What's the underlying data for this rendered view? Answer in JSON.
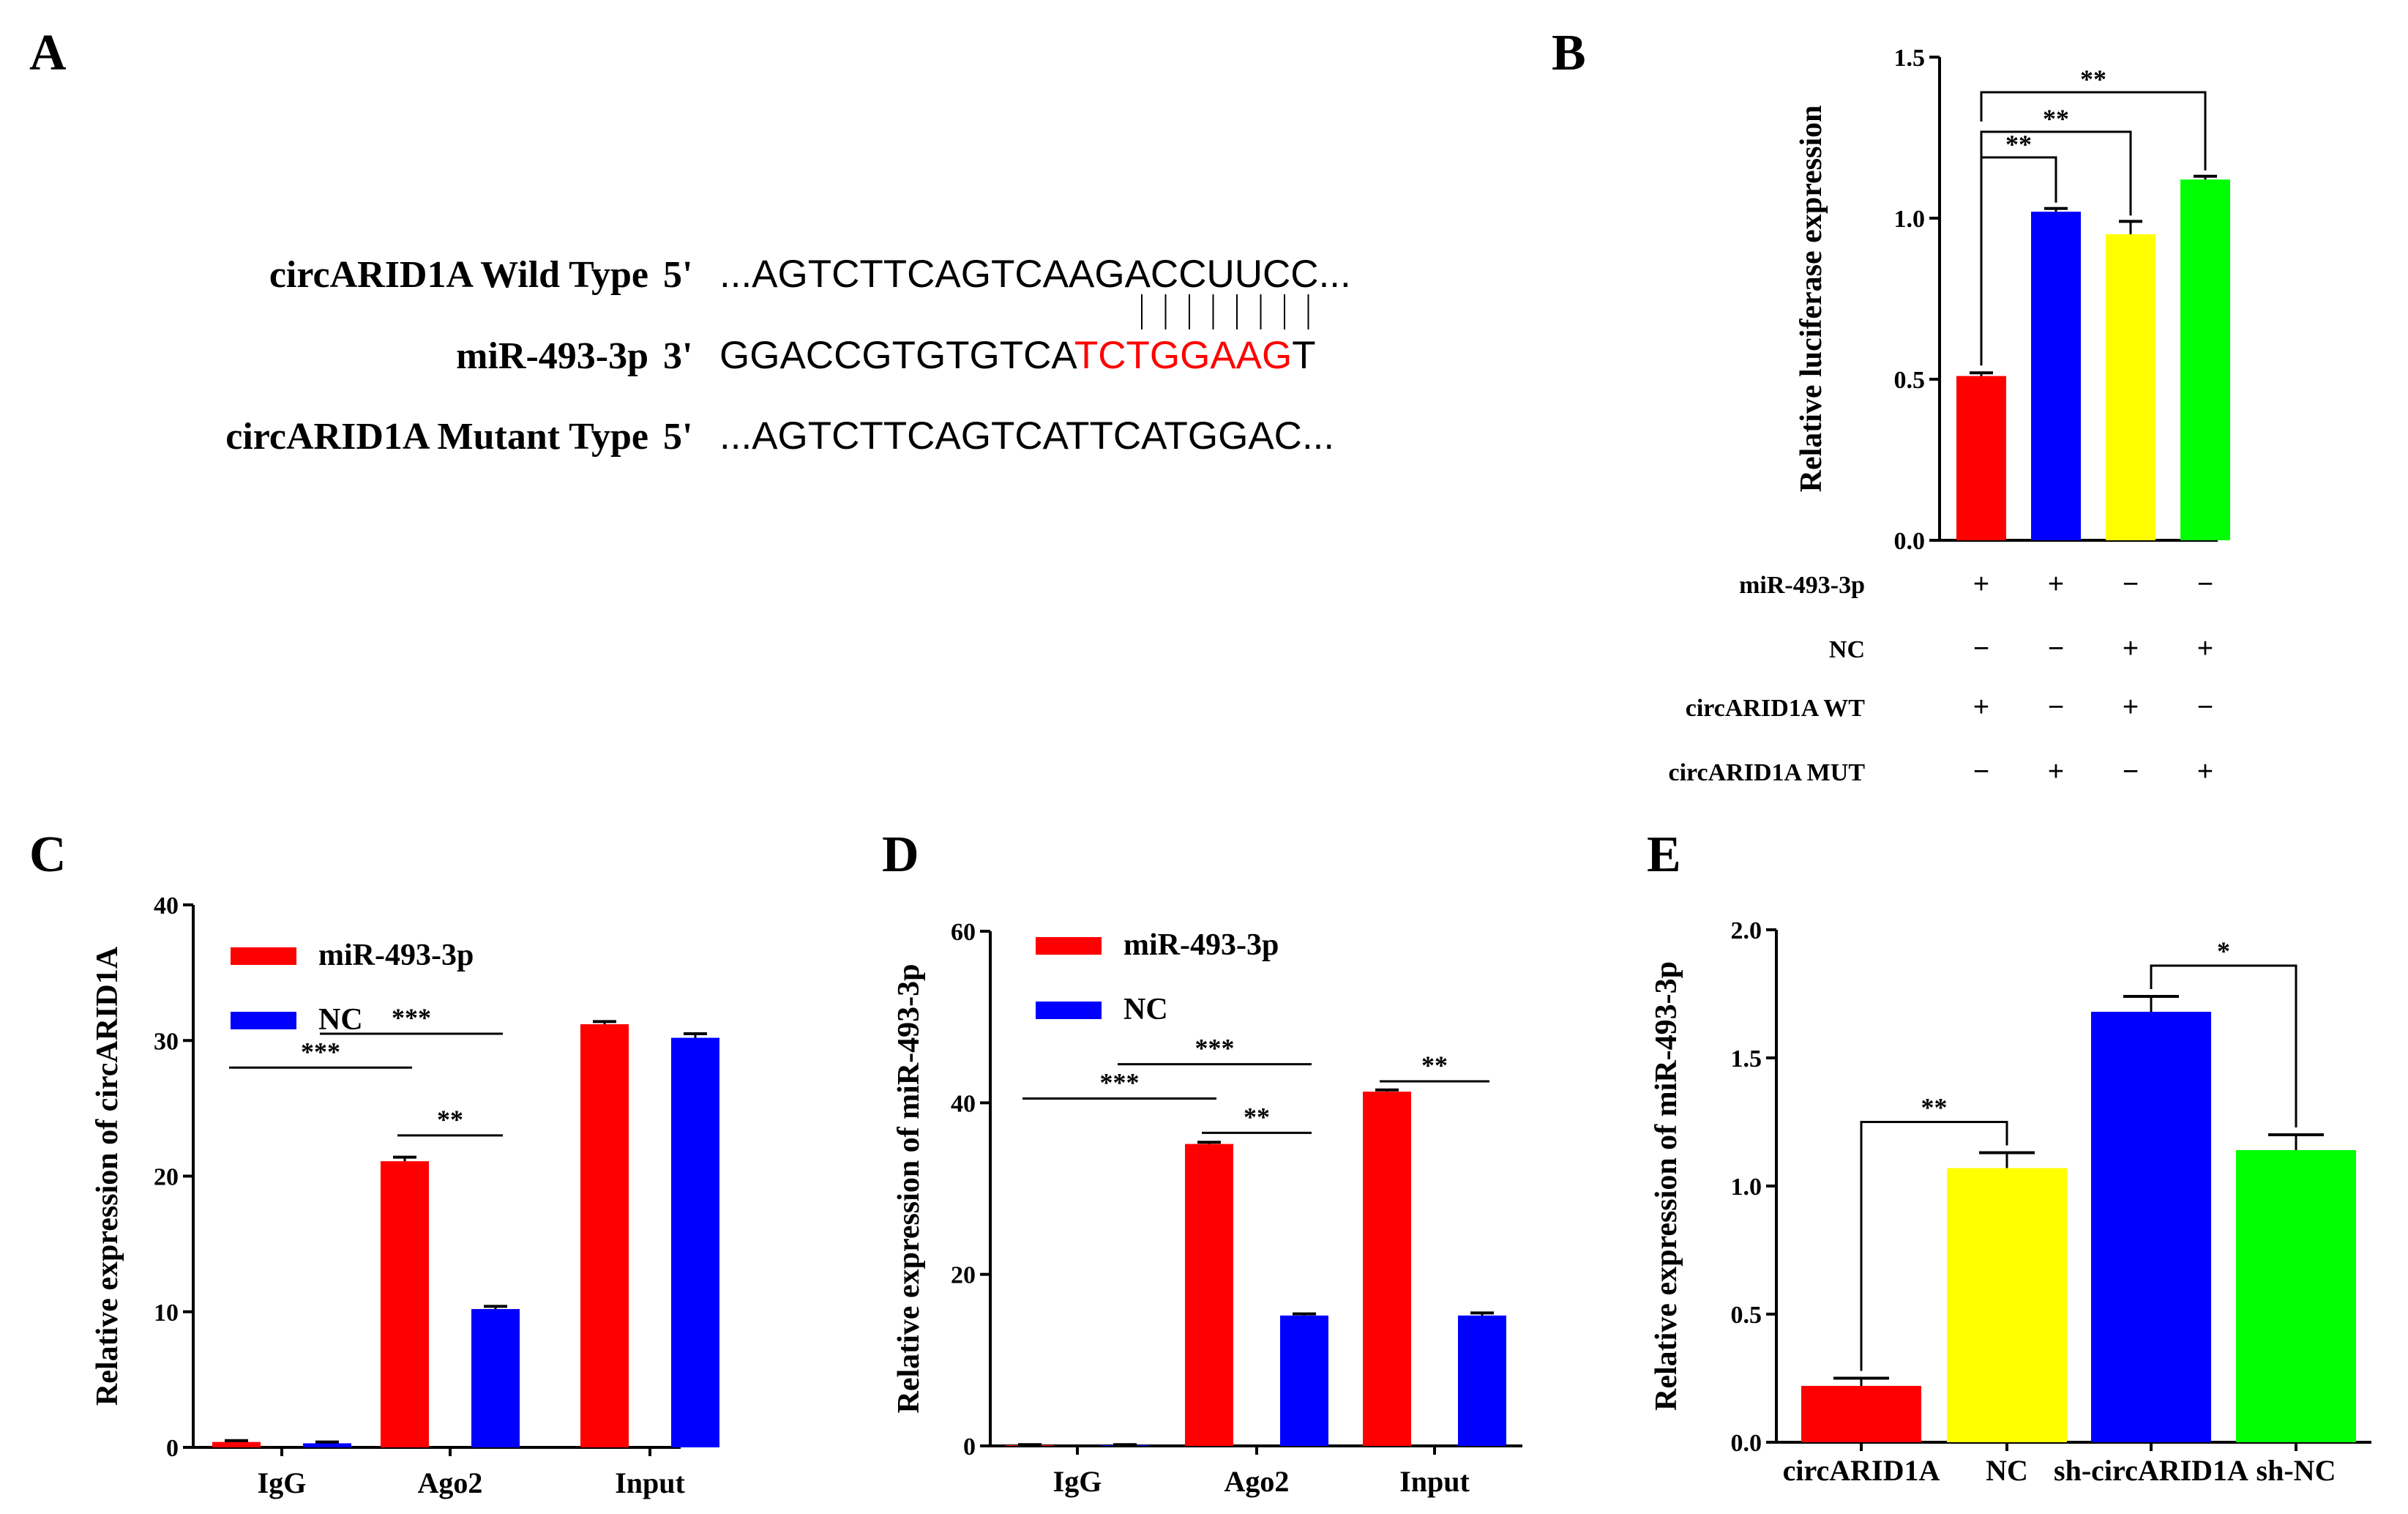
{
  "panels": {
    "A": {
      "letter": "A",
      "rows": [
        {
          "label": "circARID1A Wild Type",
          "end": "5'",
          "sequence_parts": [
            {
              "text": "...AGTCTTCAGTCAAGACCUUCC...",
              "color": "#000000"
            }
          ]
        },
        {
          "label": "miR-493-3p",
          "end": "3'",
          "sequence_parts": [
            {
              "text": "GGACCGTGTGTCA",
              "color": "#000000"
            },
            {
              "text": "TCTGGAAG",
              "color": "#ff0000"
            },
            {
              "text": "T",
              "color": "#000000"
            }
          ]
        },
        {
          "label": "circARID1A Mutant Type",
          "end": "5'",
          "sequence_parts": [
            {
              "text": "...AGTCTTCAGTCATTCATGGAC...",
              "color": "#000000"
            }
          ]
        }
      ],
      "pairing_lines": 8
    },
    "B": {
      "letter": "B"
    },
    "C": {
      "letter": "C"
    },
    "D": {
      "letter": "D"
    },
    "E": {
      "letter": "E"
    }
  },
  "chart_data": [
    {
      "id": "B",
      "type": "bar",
      "ylabel": "Relative luciferase expression",
      "ylim": [
        0,
        1.5
      ],
      "yticks": [
        "0.0",
        "0.5",
        "1.0",
        "1.5"
      ],
      "bars": [
        {
          "value": 0.51,
          "error": 0.01,
          "color": "#ff0000"
        },
        {
          "value": 1.02,
          "error": 0.01,
          "color": "#0000ff"
        },
        {
          "value": 0.95,
          "error": 0.04,
          "color": "#ffff00"
        },
        {
          "value": 1.12,
          "error": 0.01,
          "color": "#00ff00"
        }
      ],
      "conditions": [
        {
          "label": "miR-493-3p",
          "signs": [
            "+",
            "+",
            "−",
            "−"
          ]
        },
        {
          "label": "NC",
          "signs": [
            "−",
            "−",
            "+",
            "+"
          ]
        },
        {
          "label": "circARID1A WT",
          "signs": [
            "+",
            "−",
            "+",
            "−"
          ]
        },
        {
          "label": "circARID1A MUT",
          "signs": [
            "−",
            "+",
            "−",
            "+"
          ]
        }
      ],
      "significance": [
        {
          "from": 0,
          "to": 1,
          "label": "**"
        },
        {
          "from": 0,
          "to": 2,
          "label": "**"
        },
        {
          "from": 0,
          "to": 3,
          "label": "**"
        }
      ]
    },
    {
      "id": "C",
      "type": "bar",
      "ylabel": "Relative expression of circARID1A",
      "ylim": [
        0,
        40
      ],
      "yticks": [
        "0",
        "10",
        "20",
        "30",
        "40"
      ],
      "categories": [
        "IgG",
        "Ago2",
        "Input"
      ],
      "series": [
        {
          "name": "miR-493-3p",
          "color": "#ff0000",
          "values": [
            0.4,
            21.1,
            31.2
          ],
          "errors": [
            0.1,
            0.3,
            0.2
          ]
        },
        {
          "name": "NC",
          "color": "#0000ff",
          "values": [
            0.3,
            10.2,
            30.2
          ],
          "errors": [
            0.1,
            0.2,
            0.3
          ]
        }
      ],
      "significance": [
        {
          "label": "***",
          "y": 28.0,
          "from": "IgG-miR",
          "to": "Ago2-miR"
        },
        {
          "label": "***",
          "y": 30.5,
          "from": "IgG-NC",
          "to": "Ago2-NC"
        },
        {
          "label": "**",
          "y": 23.0,
          "from": "Ago2-miR",
          "to": "Ago2-NC"
        }
      ]
    },
    {
      "id": "D",
      "type": "bar",
      "ylabel": "Relative expression of miR-493-3p",
      "ylim": [
        0,
        60
      ],
      "yticks": [
        "0",
        "20",
        "40",
        "60"
      ],
      "categories": [
        "IgG",
        "Ago2",
        "Input"
      ],
      "series": [
        {
          "name": "miR-493-3p",
          "color": "#ff0000",
          "values": [
            0.1,
            35.2,
            41.3
          ],
          "errors": [
            0.05,
            0.2,
            0.2
          ]
        },
        {
          "name": "NC",
          "color": "#0000ff",
          "values": [
            0.1,
            15.2,
            15.2
          ],
          "errors": [
            0.05,
            0.2,
            0.3
          ]
        }
      ],
      "significance": [
        {
          "label": "***",
          "y": 40.5,
          "from": "IgG-miR",
          "to": "Ago2-miR"
        },
        {
          "label": "***",
          "y": 44.5,
          "from": "IgG-NC",
          "to": "Ago2-NC"
        },
        {
          "label": "**",
          "y": 36.5,
          "from": "Ago2-miR",
          "to": "Ago2-NC"
        },
        {
          "label": "**",
          "y": 42.5,
          "from": "Input-miR",
          "to": "Input-NC"
        }
      ]
    },
    {
      "id": "E",
      "type": "bar",
      "ylabel": "Relative expression of miR-493-3p",
      "ylim": [
        0,
        2.0
      ],
      "yticks": [
        "0.0",
        "0.5",
        "1.0",
        "1.5",
        "2.0"
      ],
      "categories": [
        "circARID1A",
        "NC",
        "sh-circARID1A",
        "sh-NC"
      ],
      "bars": [
        {
          "value": 0.22,
          "error": 0.03,
          "color": "#ff0000"
        },
        {
          "value": 1.07,
          "error": 0.06,
          "color": "#ffff00"
        },
        {
          "value": 1.68,
          "error": 0.06,
          "color": "#0000ff"
        },
        {
          "value": 1.14,
          "error": 0.06,
          "color": "#00ff00"
        }
      ],
      "significance": [
        {
          "from": 0,
          "to": 1,
          "label": "**",
          "y": 1.25
        },
        {
          "from": 2,
          "to": 3,
          "label": "*",
          "y": 1.86
        }
      ]
    }
  ]
}
